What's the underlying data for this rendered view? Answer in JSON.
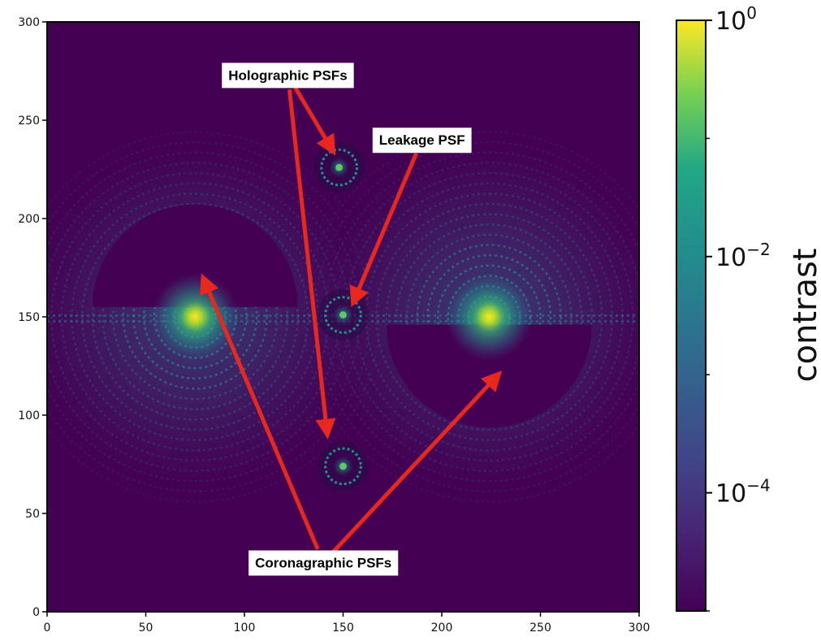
{
  "chart_data": {
    "type": "heatmap",
    "xlim": [
      0,
      300
    ],
    "ylim": [
      0,
      300
    ],
    "x_ticks": [
      0,
      50,
      100,
      150,
      200,
      250,
      300
    ],
    "y_ticks": [
      0,
      50,
      100,
      150,
      200,
      250,
      300
    ],
    "x_tick_labels": [
      "0",
      "50",
      "100",
      "150",
      "200",
      "250",
      "300"
    ],
    "y_tick_labels": [
      "0",
      "50",
      "100",
      "150",
      "200",
      "250",
      "300"
    ],
    "scale": "log",
    "colormap": "viridis",
    "colorbar": {
      "label": "contrast",
      "range": [
        1e-05,
        1
      ],
      "ticks": [
        {
          "value": 1,
          "base": "10",
          "exp": "0"
        },
        {
          "value": 0.01,
          "base": "10",
          "exp": "−2"
        },
        {
          "value": 0.0001,
          "base": "10",
          "exp": "−4"
        }
      ]
    },
    "features": [
      {
        "label": "Leakage PSF",
        "x": 150,
        "y": 151,
        "peak": 0.01
      },
      {
        "label": "Holographic PSFs",
        "x": 148,
        "y": 226,
        "peak": 0.006
      },
      {
        "label": "Holographic PSFs",
        "x": 150,
        "y": 74,
        "peak": 0.006
      },
      {
        "label": "Coronagraphic PSFs",
        "x": 75,
        "y": 150,
        "peak": 0.8,
        "dark_hole": {
          "half": "upper",
          "cx": 75,
          "cy": 155,
          "r": 52
        }
      },
      {
        "label": "Coronagraphic PSFs",
        "x": 224,
        "y": 150,
        "peak": 0.8,
        "dark_hole": {
          "half": "lower",
          "cx": 224,
          "cy": 146,
          "r": 52
        }
      }
    ],
    "annotations": [
      {
        "text": "Holographic PSFs",
        "text_x": 122,
        "text_y": 273,
        "arrows": [
          [
            145,
            234
          ],
          [
            142,
            90
          ]
        ]
      },
      {
        "text": "Leakage PSF",
        "text_x": 190,
        "text_y": 240,
        "arrows": [
          [
            155,
            157
          ]
        ]
      },
      {
        "text": "Coronagraphic PSFs",
        "text_x": 140,
        "text_y": 25,
        "arrows": [
          [
            79,
            170
          ],
          [
            229,
            121
          ]
        ]
      }
    ],
    "colors": {
      "background": "#440154",
      "arrow": "#e8281f",
      "axis": "#000000"
    }
  }
}
